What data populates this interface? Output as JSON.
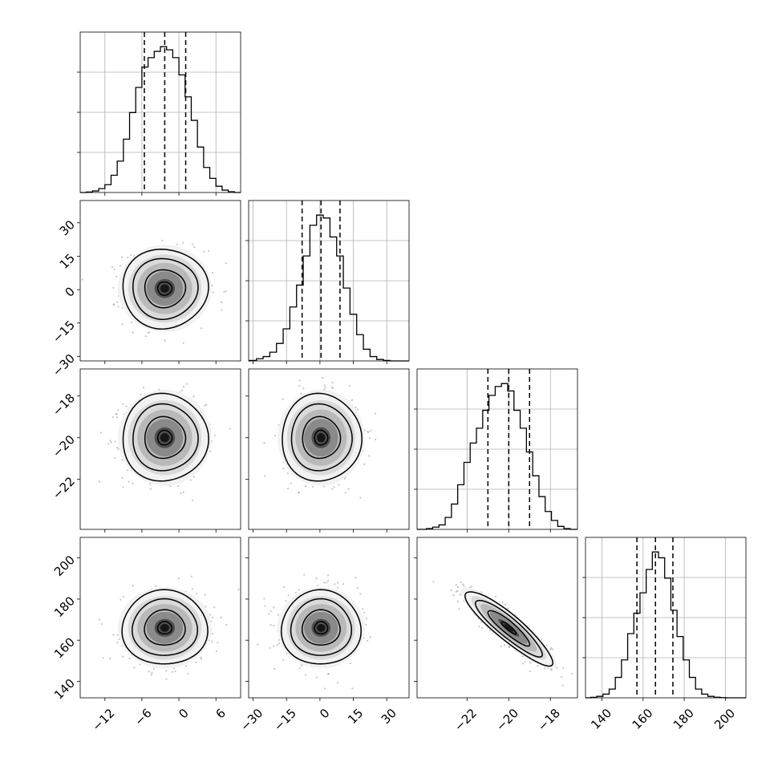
{
  "chart_data": {
    "type": "corner",
    "n_params": 4,
    "histogram_color": "#000000",
    "scatter_color": "#7f7f7f",
    "grid": true,
    "parameters": [
      {
        "index": 0,
        "range": [
          -16,
          10
        ],
        "ticks": [
          -12,
          -6,
          0,
          6
        ],
        "tick_labels": [
          "−12",
          "−6",
          "0",
          "6"
        ],
        "quantiles": [
          -5.6,
          -2.3,
          1.1
        ],
        "hist_centers": [
          -14.5,
          -13.5,
          -12.5,
          -11.5,
          -10.5,
          -9.5,
          -8.5,
          -7.5,
          -6.5,
          -5.5,
          -4.5,
          -3.5,
          -2.5,
          -1.5,
          -0.5,
          0.5,
          1.5,
          2.5,
          3.5,
          4.5,
          5.5,
          6.5,
          7.5,
          8.5
        ],
        "hist_counts": [
          0.3,
          1.0,
          2.5,
          5,
          11,
          20,
          34,
          51,
          67,
          80,
          86,
          90,
          93,
          91,
          86,
          75,
          61,
          46,
          29,
          16,
          9,
          4,
          1.5,
          0.5
        ]
      },
      {
        "index": 1,
        "range": [
          -32,
          40
        ],
        "ticks": [
          -30,
          -15,
          0,
          15,
          30
        ],
        "tick_labels": [
          "−30",
          "−15",
          "0",
          "15",
          "30"
        ],
        "quantiles": [
          -8,
          0.5,
          9
        ],
        "hist_centers": [
          -30,
          -27,
          -24,
          -21,
          -18,
          -15,
          -12,
          -9,
          -6,
          -3,
          0,
          3,
          6,
          9,
          12,
          15,
          18,
          21,
          24,
          27,
          30
        ],
        "hist_counts": [
          0.3,
          1.5,
          3,
          6,
          12,
          22,
          37,
          52,
          72,
          93,
          100,
          98,
          85,
          72,
          50,
          32,
          18,
          8,
          3,
          1,
          0.3
        ]
      },
      {
        "index": 2,
        "range": [
          -24.4,
          -16.7
        ],
        "ticks": [
          -22,
          -20,
          -18
        ],
        "tick_labels": [
          "−22",
          "−20",
          "−18"
        ],
        "quantiles": [
          -21,
          -20,
          -19
        ],
        "hist_centers": [
          -23.8,
          -23.5,
          -23.2,
          -22.9,
          -22.6,
          -22.3,
          -22.0,
          -21.7,
          -21.4,
          -21.1,
          -20.8,
          -20.5,
          -20.2,
          -19.9,
          -19.6,
          -19.3,
          -19.0,
          -18.7,
          -18.4,
          -18.1,
          -17.8,
          -17.5,
          -17.2
        ],
        "hist_counts": [
          0.5,
          1.5,
          3,
          8,
          17,
          30,
          45,
          58,
          68,
          80,
          90,
          96,
          98,
          93,
          80,
          68,
          52,
          36,
          22,
          12,
          6,
          2,
          0.5
        ]
      },
      {
        "index": 3,
        "range": [
          132,
          210
        ],
        "ticks": [
          140,
          160,
          180,
          200
        ],
        "tick_labels": [
          "140",
          "160",
          "180",
          "200"
        ],
        "quantiles": [
          157,
          166,
          174.5
        ],
        "hist_centers": [
          136,
          139,
          142,
          145,
          148,
          151,
          154,
          157,
          160,
          163,
          166,
          169,
          172,
          175,
          178,
          181,
          184,
          187,
          190,
          193,
          196,
          199
        ],
        "hist_counts": [
          0.3,
          1,
          2.5,
          6,
          14,
          26,
          44,
          58,
          72,
          88,
          100,
          96,
          82,
          60,
          42,
          26,
          14,
          6,
          2.5,
          1,
          0.4,
          0.1
        ]
      }
    ],
    "pairs": [
      {
        "row": 1,
        "col": 0,
        "mean": [
          -2.3,
          0.5
        ],
        "sigma": [
          3.3,
          8.5
        ],
        "corr": 0
      },
      {
        "row": 2,
        "col": 0,
        "mean": [
          -2.3,
          -20.0
        ],
        "sigma": [
          3.3,
          1.0
        ],
        "corr": 0
      },
      {
        "row": 2,
        "col": 1,
        "mean": [
          0.5,
          -20.0
        ],
        "sigma": [
          8.5,
          1.0
        ],
        "corr": 0
      },
      {
        "row": 3,
        "col": 0,
        "mean": [
          -2.3,
          166
        ],
        "sigma": [
          3.3,
          8.6
        ],
        "corr": 0
      },
      {
        "row": 3,
        "col": 1,
        "mean": [
          0.5,
          166
        ],
        "sigma": [
          8.5,
          8.6
        ],
        "corr": 0
      },
      {
        "row": 3,
        "col": 2,
        "mean": [
          -20.0,
          166
        ],
        "sigma": [
          1.0,
          8.6
        ],
        "corr": -0.9
      }
    ]
  }
}
